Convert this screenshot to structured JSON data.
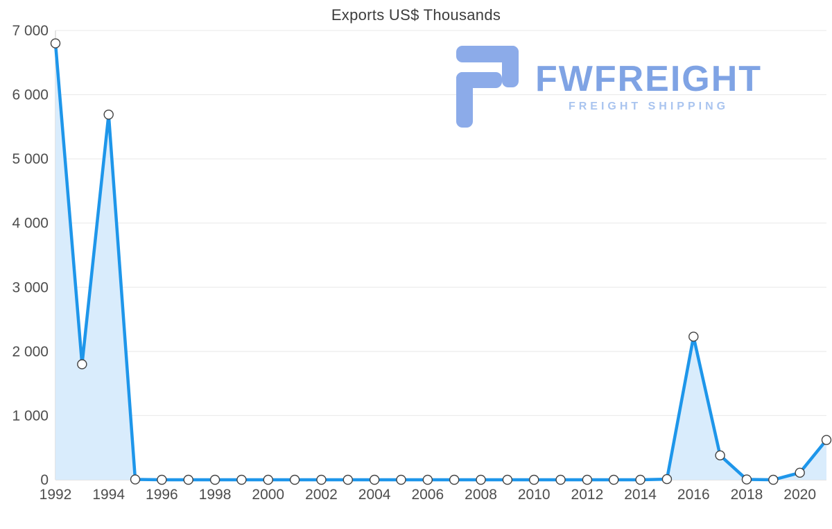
{
  "title": "Exports US$ Thousands",
  "watermark": {
    "brand": "FWFREIGHT",
    "tagline": "FREIGHT SHIPPING",
    "logo_icon": "fwfreight-logo",
    "brand_color": "#7fa3e4",
    "tagline_color": "#a9c4ef",
    "glyph_color": "#8cabe9"
  },
  "chart_data": {
    "type": "area",
    "title": "Exports US$ Thousands",
    "x": [
      1992,
      1993,
      1994,
      1995,
      1996,
      1997,
      1998,
      1999,
      2000,
      2001,
      2002,
      2003,
      2004,
      2005,
      2006,
      2007,
      2008,
      2009,
      2010,
      2011,
      2012,
      2013,
      2014,
      2015,
      2016,
      2017,
      2018,
      2019,
      2020,
      2021
    ],
    "values": [
      6800,
      1800,
      5690,
      5,
      0,
      0,
      0,
      0,
      0,
      0,
      0,
      0,
      0,
      0,
      0,
      0,
      0,
      0,
      0,
      0,
      0,
      0,
      0,
      10,
      2230,
      380,
      5,
      0,
      110,
      620
    ],
    "xlabel": "",
    "ylabel": "",
    "ylim": [
      0,
      7000
    ],
    "ytick_step": 1000,
    "xtick_step": 2,
    "ytick_labels": [
      "0",
      "1 000",
      "2 000",
      "3 000",
      "4 000",
      "5 000",
      "6 000",
      "7 000"
    ],
    "xtick_labels": [
      "1992",
      "1994",
      "1996",
      "1998",
      "2000",
      "2002",
      "2004",
      "2006",
      "2008",
      "2010",
      "2012",
      "2014",
      "2016",
      "2018",
      "2020"
    ],
    "grid": true,
    "legend": "none",
    "line_color": "#1e96ea",
    "fill_color": "#d9ecfc",
    "marker_fill": "#ffffff",
    "marker_stroke": "#424242",
    "grid_color": "#e8e8e8",
    "axis_color": "#c9c9c9",
    "tick_color": "#4d4d4d"
  }
}
